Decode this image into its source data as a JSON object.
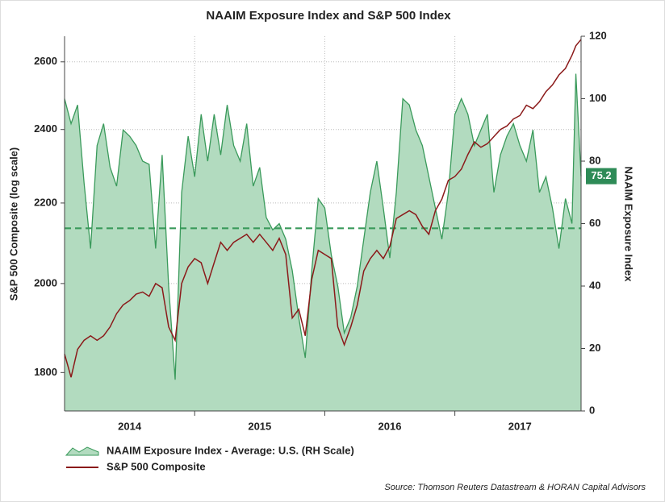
{
  "chart_data": {
    "type": "area-line",
    "title": "NAAIM Exposure Index and S&P 500 Index",
    "y_label": "S&P 500 Composite (log scale)",
    "y2_label": "NAAIM Exposure Index",
    "source": "Source: Thomson Reuters Datastream & HORAN Capital Advisors",
    "x": [
      2014,
      2014.05,
      2014.1,
      2014.15,
      2014.2,
      2014.25,
      2014.3,
      2014.35,
      2014.4,
      2014.45,
      2014.5,
      2014.55,
      2014.6,
      2014.65,
      2014.7,
      2014.75,
      2014.8,
      2014.85,
      2014.9,
      2014.95,
      2015,
      2015.05,
      2015.1,
      2015.15,
      2015.2,
      2015.25,
      2015.3,
      2015.35,
      2015.4,
      2015.45,
      2015.5,
      2015.55,
      2015.6,
      2015.65,
      2015.7,
      2015.75,
      2015.8,
      2015.85,
      2015.9,
      2015.95,
      2016,
      2016.05,
      2016.1,
      2016.15,
      2016.2,
      2016.25,
      2016.3,
      2016.35,
      2016.4,
      2016.45,
      2016.5,
      2016.55,
      2016.6,
      2016.65,
      2016.7,
      2016.75,
      2016.8,
      2016.85,
      2016.9,
      2016.95,
      2017,
      2017.05,
      2017.1,
      2017.15,
      2017.2,
      2017.25,
      2017.3,
      2017.35,
      2017.4,
      2017.45,
      2017.5,
      2017.55,
      2017.6,
      2017.65,
      2017.7,
      2017.75,
      2017.8,
      2017.85,
      2017.9,
      2017.93,
      2017.97
    ],
    "xlim": [
      2014,
      2017.97
    ],
    "xticks": [
      {
        "value": 2014.5,
        "label": "2014"
      },
      {
        "value": 2015.5,
        "label": "2015"
      },
      {
        "value": 2016.5,
        "label": "2016"
      },
      {
        "value": 2017.5,
        "label": "2017"
      }
    ],
    "xgrid": [
      2015,
      2016,
      2017
    ],
    "ylim": [
      1720,
      2680
    ],
    "yticks": [
      1800,
      2000,
      2200,
      2400,
      2600
    ],
    "ylog": true,
    "y2lim": [
      0,
      120
    ],
    "y2ticks": [
      0,
      20,
      40,
      60,
      80,
      100,
      120
    ],
    "grid": true,
    "legend": "bottom-left",
    "series": [
      {
        "name": "NAAIM Exposure Index - Average: U.S. (RH Scale)",
        "color": "#3a9a5b",
        "fill": "#b2dbbf",
        "axis": "y2",
        "values": [
          100,
          92,
          98,
          73,
          52,
          85,
          92,
          78,
          72,
          90,
          88,
          85,
          80,
          79,
          52,
          82,
          40,
          10,
          70,
          88,
          75,
          95,
          80,
          95,
          82,
          98,
          85,
          80,
          92,
          72,
          78,
          62,
          58,
          60,
          55,
          45,
          30,
          17,
          45,
          68,
          65,
          50,
          40,
          25,
          30,
          40,
          55,
          70,
          80,
          65,
          49,
          70,
          100,
          98,
          90,
          85,
          75,
          65,
          55,
          70,
          95,
          100,
          95,
          85,
          90,
          95,
          70,
          82,
          88,
          92,
          85,
          80,
          90,
          70,
          75,
          65,
          52,
          68,
          60,
          108,
          75.2
        ]
      },
      {
        "name": "S&P 500 Composite",
        "color": "#8b1a1a",
        "axis": "y",
        "values": [
          1840,
          1790,
          1850,
          1870,
          1880,
          1870,
          1880,
          1900,
          1930,
          1950,
          1960,
          1975,
          1980,
          1970,
          2000,
          1990,
          1900,
          1870,
          2000,
          2040,
          2060,
          2050,
          2000,
          2050,
          2100,
          2080,
          2100,
          2110,
          2120,
          2100,
          2120,
          2100,
          2080,
          2110,
          2070,
          1920,
          1940,
          1880,
          2010,
          2080,
          2070,
          2060,
          1900,
          1860,
          1900,
          1950,
          2030,
          2060,
          2080,
          2060,
          2090,
          2160,
          2170,
          2180,
          2170,
          2140,
          2120,
          2180,
          2210,
          2260,
          2270,
          2290,
          2330,
          2365,
          2350,
          2360,
          2380,
          2400,
          2410,
          2430,
          2440,
          2470,
          2460,
          2480,
          2510,
          2530,
          2560,
          2580,
          2620,
          2650,
          2670
        ]
      }
    ],
    "reference_line": {
      "value": 58.5,
      "axis": "y2",
      "color": "#3a9a5b",
      "style": "dashed"
    }
  }
}
